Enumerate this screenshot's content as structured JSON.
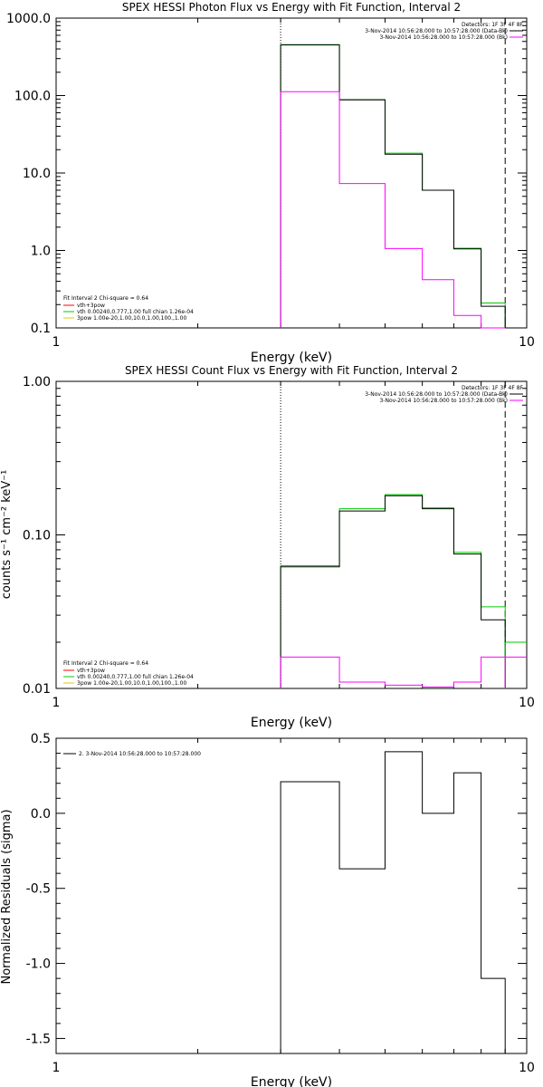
{
  "chart_data": [
    {
      "type": "line",
      "title": "SPEX HESSI Photon Flux vs Energy with Fit Function, Interval 2",
      "xlabel": "Energy (keV)",
      "ylabel": "",
      "xscale": "log",
      "yscale": "log",
      "xlim": [
        1,
        10
      ],
      "ylim": [
        0.1,
        1000
      ],
      "x_ticks": [
        "1",
        "10"
      ],
      "y_ticks": [
        "0.1",
        "1.0",
        "10.0",
        "100.0",
        "1000.0"
      ],
      "vlines": [
        {
          "x": 3.0,
          "style": "dotted"
        },
        {
          "x": 9.0,
          "style": "dashed"
        }
      ],
      "legend_top": {
        "detectors": "Detectors: 1F 3F 4F 8F",
        "entries": [
          {
            "label": "3-Nov-2014 10:56:28.000 to 10:57:28.000 (Data-Bk)",
            "color": "#000000"
          },
          {
            "label": "3-Nov-2014 10:56:28.000 to 10:57:28.000 (Bk)",
            "color": "#ff00ff"
          }
        ]
      },
      "legend_fit": {
        "header": "Fit Interval 2   Chi-square = 0.64",
        "entries": [
          {
            "label": "vth+3pow",
            "color": "#ff0000"
          },
          {
            "label": "vth 0.00240,0.777,1.00  full chian 1.26e-04",
            "color": "#00cc00"
          },
          {
            "label": "3pow 1.00e-20,1.00,10.0,1.00,100.,1.00",
            "color": "#e6c400"
          }
        ]
      },
      "bin_edges": [
        3.0,
        4.0,
        5.0,
        6.0,
        7.0,
        8.0,
        9.0
      ],
      "series": [
        {
          "name": "(Data-Bk)",
          "color": "#000000",
          "values": [
            450,
            88,
            17.5,
            6.0,
            1.05,
            0.19
          ]
        },
        {
          "name": "vth",
          "color": "#00cc00",
          "values": [
            455,
            89,
            18,
            6.0,
            1.07,
            0.21
          ]
        },
        {
          "name": "(Bk)",
          "color": "#ff00ff",
          "values": [
            112,
            7.3,
            1.06,
            0.42,
            0.145,
            0.1
          ]
        }
      ]
    },
    {
      "type": "line",
      "title": "SPEX HESSI Count Flux vs Energy with Fit Function, Interval 2",
      "xlabel": "Energy (keV)",
      "ylabel": "counts s⁻¹ cm⁻² keV⁻¹",
      "xscale": "log",
      "yscale": "log",
      "xlim": [
        1,
        10
      ],
      "ylim": [
        0.01,
        1
      ],
      "x_ticks": [
        "1",
        "10"
      ],
      "y_ticks": [
        "0.01",
        "0.10",
        "1.00"
      ],
      "vlines": [
        {
          "x": 3.0,
          "style": "dotted"
        },
        {
          "x": 9.0,
          "style": "dashed"
        }
      ],
      "legend_top": {
        "detectors": "Detectors: 1F 3F 4F 8F",
        "entries": [
          {
            "label": "3-Nov-2014 10:56:28.000 to 10:57:28.000 (Data-Bk)",
            "color": "#000000"
          },
          {
            "label": "3-Nov-2014 10:56:28.000 to 10:57:28.000 (Bk)",
            "color": "#ff00ff"
          }
        ]
      },
      "legend_fit": {
        "header": "Fit Interval 2   Chi-square = 0.64",
        "entries": [
          {
            "label": "vth+3pow",
            "color": "#ff0000"
          },
          {
            "label": "vth 0.00240,0.777,1.00  full chian 1.26e-04",
            "color": "#00cc00"
          },
          {
            "label": "3pow 1.00e-20,1.00,10.0,1.00,100.,1.00",
            "color": "#e6c400"
          }
        ]
      },
      "bin_edges": [
        3.0,
        4.0,
        5.0,
        6.0,
        7.0,
        8.0,
        9.0
      ],
      "series": [
        {
          "name": "(Data-Bk)",
          "color": "#000000",
          "values": [
            0.062,
            0.143,
            0.18,
            0.148,
            0.075,
            0.028
          ]
        },
        {
          "name": "vth",
          "color": "#00cc00",
          "values": [
            0.063,
            0.148,
            0.183,
            0.15,
            0.077,
            0.034
          ]
        },
        {
          "name": "(Bk)",
          "color": "#ff00ff",
          "values": [
            0.016,
            0.011,
            0.0105,
            0.0102,
            0.011,
            0.016
          ]
        }
      ],
      "extra_bins": [
        {
          "name": "vth",
          "color": "#00cc00",
          "x0": 9.0,
          "x1": 10.0,
          "value": 0.02
        },
        {
          "name": "(Bk)",
          "color": "#ff00ff",
          "x0": 9.0,
          "x1": 10.0,
          "value": 0.016
        }
      ]
    },
    {
      "type": "line",
      "title": "",
      "xlabel": "Energy (keV)",
      "ylabel": "Normalized Residuals (sigma)",
      "xscale": "log",
      "yscale": "linear",
      "xlim": [
        1,
        10
      ],
      "ylim": [
        -1.6,
        0.5
      ],
      "x_ticks": [
        "1",
        "10"
      ],
      "y_ticks": [
        "-1.5",
        "-1.0",
        "-0.5",
        "0.0",
        "0.5"
      ],
      "legend": {
        "label": "2.  3-Nov-2014 10:56:28.000 to 10:57:28.000",
        "color": "#000000"
      },
      "bin_edges": [
        3.0,
        4.0,
        5.0,
        6.0,
        7.0,
        8.0,
        9.0
      ],
      "series": [
        {
          "name": "2.  3-Nov-2014 10:56:28.000 to 10:57:28.000",
          "color": "#000000",
          "values": [
            0.21,
            -0.37,
            0.41,
            0.0,
            0.27,
            -1.1
          ]
        }
      ]
    }
  ]
}
